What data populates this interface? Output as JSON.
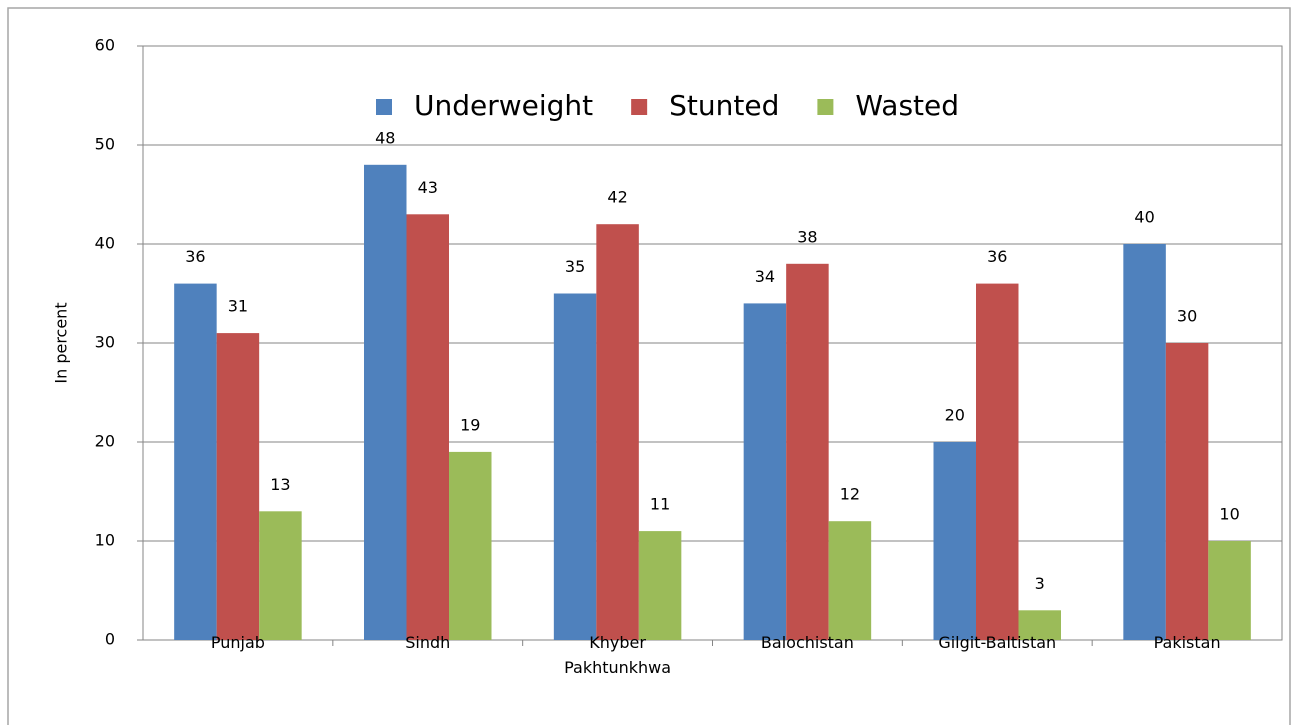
{
  "chart_data": {
    "type": "bar",
    "y_label": "In percent",
    "categories": [
      "Punjab",
      "Sindh",
      "Khyber Pakhtunkhwa",
      "Balochistan",
      "Gilgit-Baltistan",
      "Pakistan"
    ],
    "series": [
      {
        "name": "Underweight",
        "color": "#4f81bd",
        "values": [
          36,
          48,
          35,
          34,
          20,
          40
        ]
      },
      {
        "name": "Stunted",
        "color": "#c0504d",
        "values": [
          31,
          43,
          42,
          38,
          36,
          30
        ]
      },
      {
        "name": "Wasted",
        "color": "#9bbb59",
        "values": [
          13,
          19,
          11,
          12,
          3,
          10
        ]
      }
    ],
    "ylim": [
      0,
      60
    ],
    "yticks": [
      0,
      10,
      20,
      30,
      40,
      50,
      60
    ],
    "grid": true,
    "legend": "top"
  }
}
